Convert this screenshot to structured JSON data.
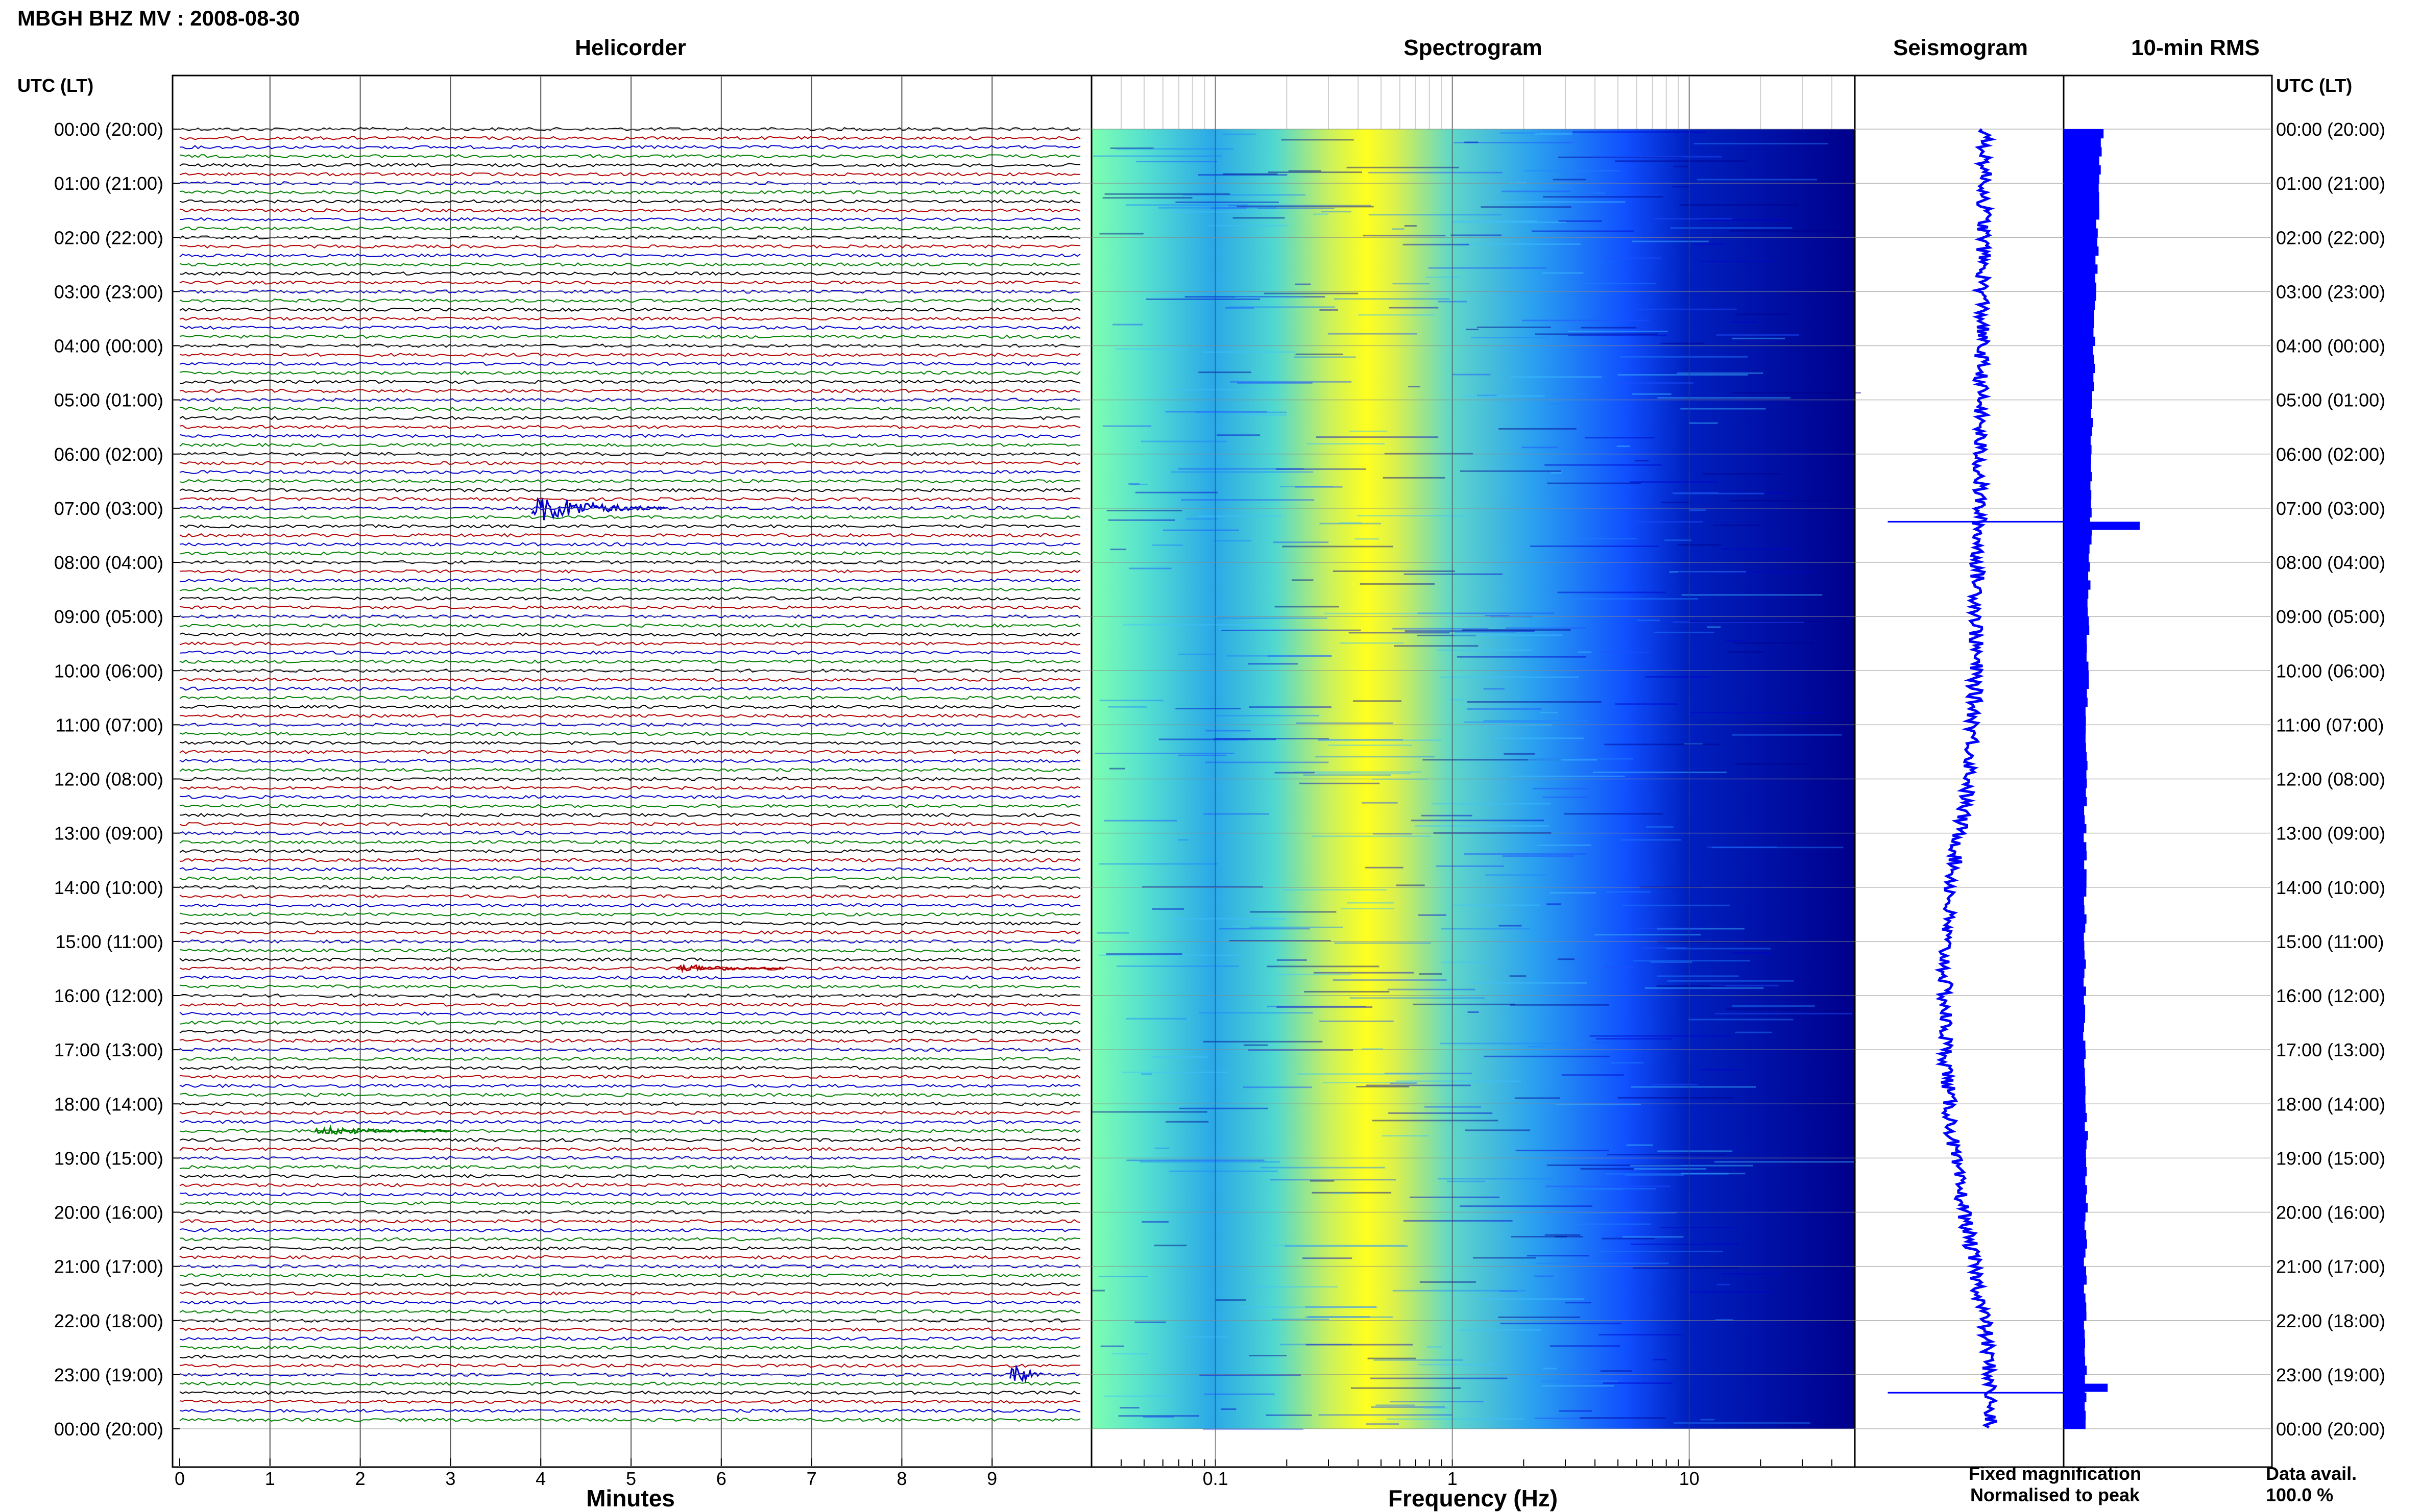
{
  "title": "MBGH BHZ MV : 2008-08-30",
  "colors": {
    "trace_cycle": [
      "#000000",
      "#b30000",
      "#0000cc",
      "#008000"
    ],
    "spec_low": "#00008b",
    "spec_high": "#ffff00",
    "seismogram": "#0000ff",
    "rms": "#0000ff",
    "fixed_mag": "#0000ff",
    "normalised": "#ff0000"
  },
  "panels": {
    "helicorder": "Helicorder",
    "spectrogram": "Spectrogram",
    "seismogram": "Seismogram",
    "rms": "10-min RMS"
  },
  "time_header_left": "UTC (LT)",
  "time_header_right": "UTC (LT)",
  "time_labels": [
    "00:00 (20:00)",
    "01:00 (21:00)",
    "02:00 (22:00)",
    "03:00 (23:00)",
    "04:00 (00:00)",
    "05:00 (01:00)",
    "06:00 (02:00)",
    "07:00 (03:00)",
    "08:00 (04:00)",
    "09:00 (05:00)",
    "10:00 (06:00)",
    "11:00 (07:00)",
    "12:00 (08:00)",
    "13:00 (09:00)",
    "14:00 (10:00)",
    "15:00 (11:00)",
    "16:00 (12:00)",
    "17:00 (13:00)",
    "18:00 (14:00)",
    "19:00 (15:00)",
    "20:00 (16:00)",
    "21:00 (17:00)",
    "22:00 (18:00)",
    "23:00 (19:00)",
    "00:00 (20:00)"
  ],
  "helicorder_xlabel": "Minutes",
  "helicorder_ticks": [
    "0",
    "1",
    "2",
    "3",
    "4",
    "5",
    "6",
    "7",
    "8",
    "9"
  ],
  "spectrogram_xlabel": "Frequency (Hz)",
  "spectrogram_ticks": [
    "0.1",
    "1",
    "10"
  ],
  "legend": {
    "fixed": "Fixed magnification",
    "normalised": "Normalised to peak"
  },
  "data_avail_label": "Data avail.",
  "data_avail_value": "100.0 %",
  "chart_data": [
    {
      "type": "line",
      "title": "Helicorder",
      "xlabel": "Minutes",
      "xlim": [
        0,
        10
      ],
      "ylabel": "UTC (LT)",
      "rows_per_hour": 6,
      "events": [
        {
          "time": "07:00",
          "minute": 3.9,
          "duration_min": 1.5,
          "amplitude": "large"
        },
        {
          "time": "15:30",
          "minute": 5.5,
          "duration_min": 1.2,
          "amplitude": "medium"
        },
        {
          "time": "18:30",
          "minute": 1.5,
          "duration_min": 1.5,
          "amplitude": "medium"
        },
        {
          "time": "23:00",
          "minute": 9.2,
          "duration_min": 0.4,
          "amplitude": "large"
        }
      ]
    },
    {
      "type": "heatmap",
      "title": "Spectrogram",
      "xlabel": "Frequency (Hz)",
      "xscale": "log",
      "xlim": [
        0.03,
        50
      ],
      "peak_frequency_hz": 0.4
    },
    {
      "type": "line",
      "title": "Seismogram",
      "x_offset_by_hour": [
        0.05,
        0.05,
        0.04,
        0.03,
        0.02,
        0.01,
        0.0,
        0.0,
        -0.02,
        -0.03,
        -0.04,
        -0.06,
        -0.1,
        -0.2,
        -0.28,
        -0.34,
        -0.34,
        -0.33,
        -0.3,
        -0.25,
        -0.15,
        -0.05,
        0.05,
        0.1,
        0.1
      ],
      "spikes": [
        {
          "time": "07:15",
          "half_width": 0.9
        },
        {
          "time": "23:20",
          "half_width": 0.9
        }
      ]
    },
    {
      "type": "bar",
      "title": "10-min RMS",
      "orientation": "horizontal",
      "hourly_level": [
        0.48,
        0.44,
        0.42,
        0.4,
        0.38,
        0.36,
        0.35,
        0.34,
        0.33,
        0.31,
        0.3,
        0.29,
        0.28,
        0.27,
        0.27,
        0.26,
        0.27,
        0.26,
        0.28,
        0.29,
        0.28,
        0.27,
        0.27,
        0.27,
        0.26
      ],
      "peaks": [
        {
          "time": "07:15",
          "value": 0.95
        },
        {
          "time": "23:10",
          "value": 0.55
        }
      ]
    }
  ]
}
